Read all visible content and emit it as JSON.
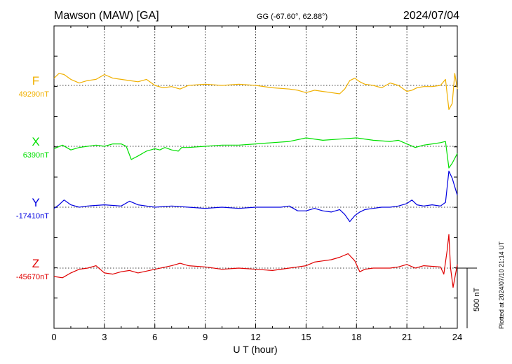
{
  "header": {
    "station": "Mawson (MAW)  [GA]",
    "coords": "GG (-67.60°,  62.88°)",
    "date": "2024/07/04"
  },
  "footer": {
    "plotted": "Plotted at 2024/07/10 21:14 UT"
  },
  "colors": {
    "F": "#f0b000",
    "X": "#00e000",
    "Y": "#0000e0",
    "Z": "#e00000",
    "grid": "#000000"
  },
  "chart_data": {
    "type": "line",
    "xlabel": "U T (hour)",
    "xlim": [
      0,
      24
    ],
    "x_ticks": [
      "0",
      "3",
      "6",
      "9",
      "12",
      "15",
      "18",
      "21",
      "24"
    ],
    "scale_label": "500 nT",
    "scale_nT": 500,
    "series": [
      {
        "name": "F",
        "baseline_label": "49290nT",
        "baseline_nT": 49290,
        "x": [
          0,
          0.3,
          0.6,
          1,
          1.5,
          2,
          2.5,
          3,
          3.5,
          4,
          4.5,
          5,
          5.5,
          6,
          6.5,
          7,
          7.5,
          8,
          9,
          10,
          11,
          12,
          13,
          14,
          14.5,
          15,
          15.5,
          16,
          16.5,
          17,
          17.3,
          17.6,
          17.9,
          18.2,
          18.5,
          19,
          19.5,
          20,
          20.5,
          21,
          21.3,
          21.6,
          22,
          22.5,
          23,
          23.3,
          23.5,
          23.7,
          23.85,
          24
        ],
        "y": [
          60,
          100,
          90,
          50,
          20,
          40,
          50,
          90,
          60,
          50,
          40,
          30,
          50,
          0,
          -20,
          -10,
          -30,
          0,
          10,
          0,
          10,
          0,
          -20,
          -30,
          -40,
          -60,
          -40,
          -50,
          -60,
          -70,
          -30,
          40,
          60,
          30,
          10,
          0,
          -20,
          20,
          0,
          -50,
          -40,
          -20,
          -10,
          -10,
          0,
          50,
          -200,
          -150,
          100,
          -30
        ]
      },
      {
        "name": "X",
        "baseline_label": "6390nT",
        "baseline_nT": 6390,
        "x": [
          0,
          0.5,
          1,
          1.5,
          2,
          2.5,
          3,
          3.5,
          4,
          4.3,
          4.6,
          5,
          5.5,
          6,
          6.3,
          6.6,
          7,
          7.4,
          7.6,
          8,
          9,
          10,
          11,
          12,
          13,
          14,
          15,
          16,
          17,
          18,
          19,
          20,
          20.5,
          21,
          21.5,
          22,
          22.5,
          23,
          23.3,
          23.5,
          23.7,
          24
        ],
        "y": [
          -20,
          10,
          -30,
          -10,
          0,
          10,
          0,
          20,
          20,
          0,
          -110,
          -80,
          -40,
          -20,
          -30,
          -10,
          -30,
          -40,
          -10,
          -10,
          0,
          10,
          10,
          20,
          30,
          40,
          70,
          50,
          60,
          70,
          50,
          40,
          50,
          20,
          -10,
          10,
          20,
          30,
          40,
          -180,
          -140,
          -60
        ]
      },
      {
        "name": "Y",
        "baseline_label": "-17410nT",
        "baseline_nT": -17410,
        "x": [
          0,
          0.3,
          0.6,
          1,
          1.5,
          2,
          3,
          4,
          4.5,
          5,
          5.5,
          6,
          7,
          8,
          9,
          10,
          11,
          12,
          13,
          13.5,
          14,
          14.5,
          15,
          15.5,
          16,
          16.5,
          17,
          17.3,
          17.6,
          17.9,
          18.2,
          18.5,
          19,
          19.5,
          20,
          20.5,
          21,
          21.3,
          21.6,
          22,
          22.5,
          23,
          23.3,
          23.5,
          23.7,
          24
        ],
        "y": [
          -10,
          20,
          60,
          20,
          0,
          10,
          20,
          10,
          50,
          20,
          10,
          0,
          10,
          0,
          -10,
          0,
          -10,
          0,
          0,
          0,
          10,
          -30,
          -30,
          -10,
          -30,
          -40,
          -20,
          -60,
          -120,
          -70,
          -40,
          -20,
          -10,
          0,
          0,
          10,
          30,
          60,
          20,
          10,
          20,
          10,
          40,
          300,
          240,
          100
        ]
      },
      {
        "name": "Z",
        "baseline_label": "-45670nT",
        "baseline_nT": -45670,
        "x": [
          0,
          0.5,
          1,
          1.5,
          2,
          2.5,
          3,
          3.5,
          4,
          4.5,
          5,
          6,
          7,
          7.5,
          8,
          9,
          10,
          11,
          12,
          13,
          14,
          14.5,
          15,
          15.5,
          16,
          16.5,
          17,
          17.5,
          17.9,
          18.2,
          18.5,
          19,
          20,
          20.5,
          21,
          21.5,
          22,
          23,
          23.2,
          23.4,
          23.5,
          23.6,
          23.75,
          24
        ],
        "y": [
          -70,
          -80,
          -40,
          -10,
          0,
          20,
          -40,
          -50,
          -30,
          -20,
          -40,
          -10,
          20,
          40,
          20,
          10,
          -10,
          0,
          -10,
          -20,
          0,
          10,
          20,
          50,
          60,
          70,
          90,
          120,
          60,
          -30,
          -10,
          0,
          0,
          10,
          30,
          0,
          20,
          10,
          -50,
          150,
          280,
          0,
          -160,
          30
        ]
      }
    ]
  }
}
